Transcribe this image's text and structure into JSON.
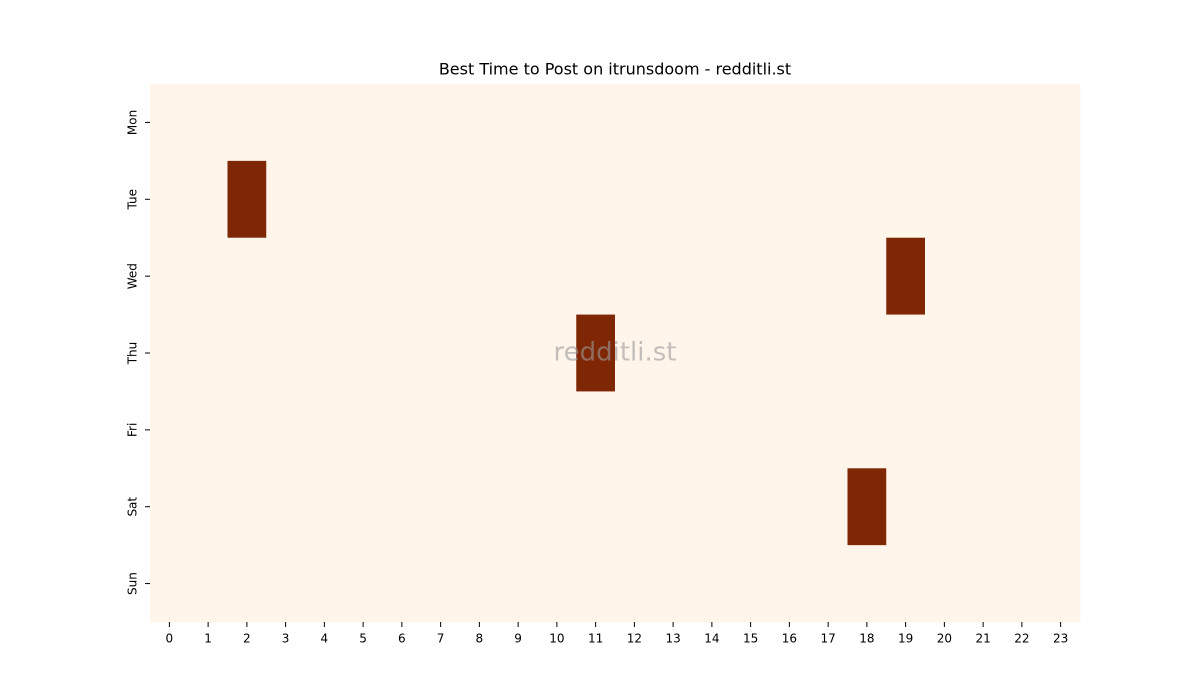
{
  "chart_data": {
    "type": "heatmap",
    "title": "Best Time to Post on itrunsdoom - redditli.st",
    "watermark": "redditli.st",
    "x_categories": [
      0,
      1,
      2,
      3,
      4,
      5,
      6,
      7,
      8,
      9,
      10,
      11,
      12,
      13,
      14,
      15,
      16,
      17,
      18,
      19,
      20,
      21,
      22,
      23
    ],
    "y_categories": [
      "Mon",
      "Tue",
      "Wed",
      "Thu",
      "Fri",
      "Sat",
      "Sun"
    ],
    "values": [
      [
        0,
        0,
        0,
        0,
        0,
        0,
        0,
        0,
        0,
        0,
        0,
        0,
        0,
        0,
        0,
        0,
        0,
        0,
        0,
        0,
        0,
        0,
        0,
        0
      ],
      [
        0,
        0,
        1,
        0,
        0,
        0,
        0,
        0,
        0,
        0,
        0,
        0,
        0,
        0,
        0,
        0,
        0,
        0,
        0,
        0,
        0,
        0,
        0,
        0
      ],
      [
        0,
        0,
        0,
        0,
        0,
        0,
        0,
        0,
        0,
        0,
        0,
        0,
        0,
        0,
        0,
        0,
        0,
        0,
        0,
        1,
        0,
        0,
        0,
        0
      ],
      [
        0,
        0,
        0,
        0,
        0,
        0,
        0,
        0,
        0,
        0,
        0,
        1,
        0,
        0,
        0,
        0,
        0,
        0,
        0,
        0,
        0,
        0,
        0,
        0
      ],
      [
        0,
        0,
        0,
        0,
        0,
        0,
        0,
        0,
        0,
        0,
        0,
        0,
        0,
        0,
        0,
        0,
        0,
        0,
        0,
        0,
        0,
        0,
        0,
        0
      ],
      [
        0,
        0,
        0,
        0,
        0,
        0,
        0,
        0,
        0,
        0,
        0,
        0,
        0,
        0,
        0,
        0,
        0,
        0,
        1,
        0,
        0,
        0,
        0,
        0
      ],
      [
        0,
        0,
        0,
        0,
        0,
        0,
        0,
        0,
        0,
        0,
        0,
        0,
        0,
        0,
        0,
        0,
        0,
        0,
        0,
        0,
        0,
        0,
        0,
        0
      ]
    ],
    "colors": [
      "#fff5eb",
      "#7f2704"
    ]
  }
}
